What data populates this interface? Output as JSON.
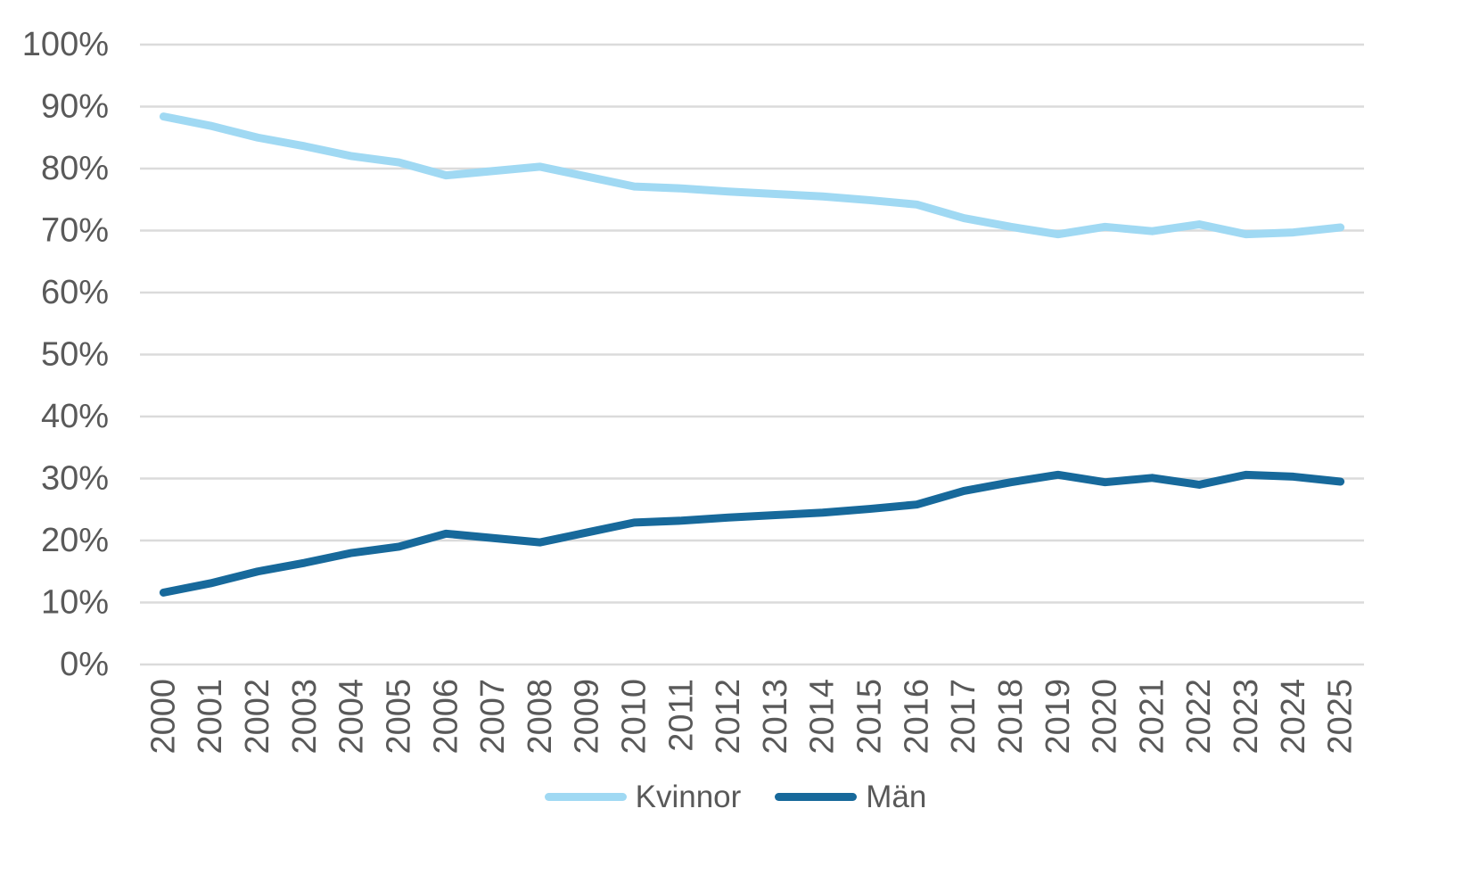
{
  "chart_data": {
    "type": "line",
    "categories": [
      "2000",
      "2001",
      "2002",
      "2003",
      "2004",
      "2005",
      "2006",
      "2007",
      "2008",
      "2009",
      "2010",
      "2011",
      "2012",
      "2013",
      "2014",
      "2015",
      "2016",
      "2017",
      "2018",
      "2019",
      "2020",
      "2021",
      "2022",
      "2023",
      "2024",
      "2025"
    ],
    "series": [
      {
        "name": "Kvinnor",
        "color": "#A0D9F3",
        "values": [
          88.4,
          86.9,
          85.0,
          83.6,
          82.0,
          81.0,
          78.9,
          79.6,
          80.3,
          78.7,
          77.1,
          76.8,
          76.3,
          75.9,
          75.5,
          74.9,
          74.2,
          72.0,
          70.6,
          69.4,
          70.6,
          69.9,
          71.0,
          69.4,
          69.7,
          70.5
        ]
      },
      {
        "name": "Män",
        "color": "#17699B",
        "values": [
          11.6,
          13.1,
          15.0,
          16.4,
          18.0,
          19.0,
          21.1,
          20.4,
          19.7,
          21.3,
          22.9,
          23.2,
          23.7,
          24.1,
          24.5,
          25.1,
          25.8,
          28.0,
          29.4,
          30.6,
          29.4,
          30.1,
          29.0,
          30.6,
          30.3,
          29.5
        ]
      }
    ],
    "ylim": [
      0,
      100
    ],
    "y_tick_step": 10,
    "y_tick_labels": [
      "0%",
      "10%",
      "20%",
      "30%",
      "40%",
      "50%",
      "60%",
      "70%",
      "80%",
      "90%",
      "100%"
    ],
    "xlabel": "",
    "ylabel": "",
    "grid": "horizontal",
    "legend_position": "bottom",
    "grid_color": "#DBDBDB",
    "axis_text_color": "#595959",
    "background": "#FFFFFF"
  }
}
